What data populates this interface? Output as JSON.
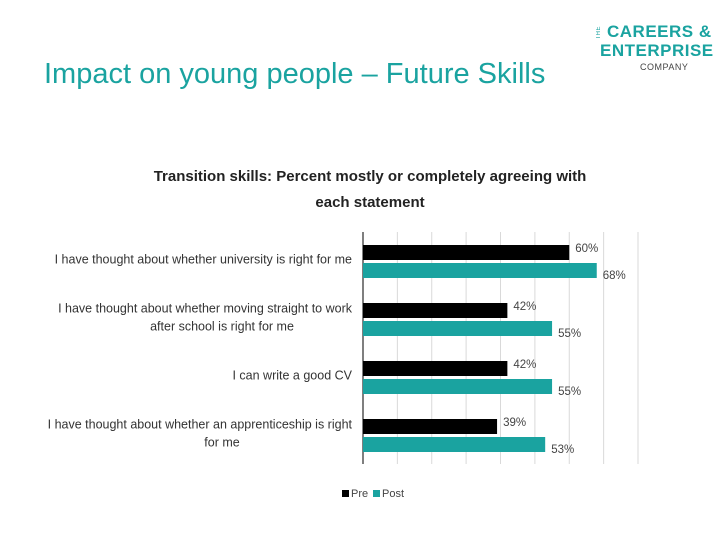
{
  "slide": {
    "title": "Impact on young people – Future Skills"
  },
  "logo": {
    "the": "THE",
    "line1": "CAREERS &",
    "line2": "ENTERPRISE",
    "line3": "COMPANY"
  },
  "chart_data": {
    "type": "bar",
    "orientation": "horizontal",
    "title": "Transition skills: Percent mostly or completely agreeing with each statement",
    "categories": [
      "I have thought about whether university is right for me",
      "I have thought about whether moving straight to work after school is right for me",
      "I can write a good CV",
      "I have thought about whether an apprenticeship is right for me"
    ],
    "category_lines": [
      [
        "I have thought about whether university is right for me"
      ],
      [
        "I have thought about whether moving straight to work",
        "after school is right for me"
      ],
      [
        "I can write a good CV"
      ],
      [
        "I have thought about whether an apprenticeship is right",
        "for me"
      ]
    ],
    "series": [
      {
        "name": "Pre",
        "color": "#000000",
        "values": [
          60,
          42,
          42,
          39
        ],
        "labels": [
          "60%",
          "42%",
          "42%",
          "39%"
        ]
      },
      {
        "name": "Post",
        "color": "#1aa3a0",
        "values": [
          68,
          55,
          55,
          53
        ],
        "labels": [
          "68%",
          "55%",
          "55%",
          "53%"
        ]
      }
    ],
    "xlim": [
      0,
      80
    ],
    "grid": true,
    "legend": "bottom"
  }
}
